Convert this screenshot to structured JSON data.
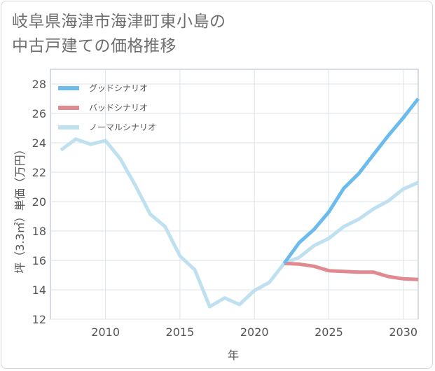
{
  "title_lines": [
    "岐阜県海津市海津町東小島の",
    "中古戸建ての価格推移"
  ],
  "chart_data": {
    "type": "line",
    "xlabel": "年",
    "ylabel": "坪（3.3㎡）単価（万円）",
    "xlim": [
      2006.3,
      2031
    ],
    "ylim": [
      12,
      29
    ],
    "x_ticks": [
      2010,
      2015,
      2020,
      2025,
      2030
    ],
    "y_ticks": [
      12,
      14,
      16,
      18,
      20,
      22,
      24,
      26,
      28
    ],
    "grid": true,
    "legend_position": "top-left",
    "series": [
      {
        "name": "グッドシナリオ",
        "color": "#6bbbec",
        "x": [
          2022,
          2023,
          2024,
          2025,
          2026,
          2027,
          2028,
          2029,
          2030,
          2031
        ],
        "y": [
          15.8,
          17.2,
          18.1,
          19.3,
          20.9,
          21.9,
          23.2,
          24.5,
          25.7,
          27.0
        ]
      },
      {
        "name": "バッドシナリオ",
        "color": "#e08a90",
        "x": [
          2022,
          2023,
          2024,
          2025,
          2026,
          2027,
          2028,
          2029,
          2030,
          2031
        ],
        "y": [
          15.8,
          15.75,
          15.6,
          15.3,
          15.25,
          15.2,
          15.2,
          14.9,
          14.75,
          14.7
        ]
      },
      {
        "name": "ノーマルシナリオ",
        "color": "#bfe1ef",
        "x": [
          2007,
          2008,
          2009,
          2010,
          2011,
          2012,
          2013,
          2014,
          2015,
          2016,
          2017,
          2018,
          2019,
          2020,
          2021,
          2022,
          2023,
          2024,
          2025,
          2026,
          2027,
          2028,
          2029,
          2030,
          2031
        ],
        "y": [
          23.5,
          24.25,
          23.9,
          24.15,
          22.9,
          21.1,
          19.15,
          18.3,
          16.3,
          15.35,
          12.85,
          13.45,
          13.0,
          13.95,
          14.5,
          15.8,
          16.2,
          17.0,
          17.5,
          18.3,
          18.8,
          19.5,
          20.05,
          20.85,
          21.3
        ]
      }
    ]
  }
}
